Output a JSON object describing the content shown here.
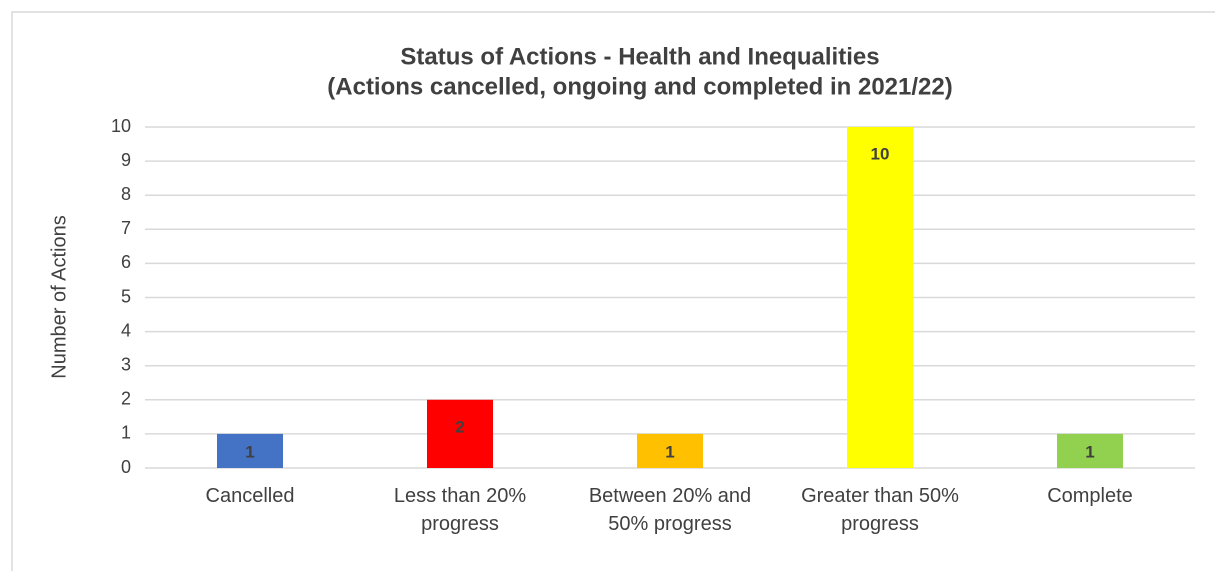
{
  "chart_data": {
    "type": "bar",
    "title": "Status of Actions - Health and Inequalities",
    "subtitle": "(Actions cancelled, ongoing and completed in 2021/22)",
    "y_label": "Number of Actions",
    "categories": [
      "Cancelled",
      "Less than 20% progress",
      "Between 20% and 50% progress",
      "Greater than 50% progress",
      "Complete"
    ],
    "values": [
      1,
      2,
      1,
      10,
      1
    ],
    "colors": [
      "#4472c4",
      "#ff0000",
      "#ffc000",
      "#ffff00",
      "#92d050"
    ],
    "ylim": [
      0,
      10
    ],
    "yticks": [
      0,
      1,
      2,
      3,
      4,
      5,
      6,
      7,
      8,
      9,
      10
    ],
    "grid": true
  }
}
